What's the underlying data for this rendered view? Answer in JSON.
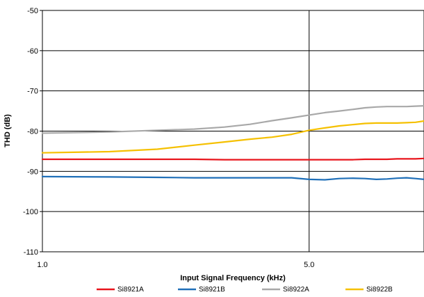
{
  "chart_data": {
    "type": "line",
    "title": "",
    "xlabel": "Input Signal Frequency (kHz)",
    "ylabel": "THD (dB)",
    "x_scale": "log",
    "xlim": [
      1.0,
      10.0
    ],
    "ylim": [
      -110,
      -50
    ],
    "x_ticks": [
      {
        "value": 1.0,
        "label": "1.0"
      },
      {
        "value": 5.0,
        "label": "5.0"
      }
    ],
    "y_ticks": [
      {
        "value": -50,
        "label": "-50"
      },
      {
        "value": -60,
        "label": "-60"
      },
      {
        "value": -70,
        "label": "-70"
      },
      {
        "value": -80,
        "label": "-80"
      },
      {
        "value": -90,
        "label": "-90"
      },
      {
        "value": -100,
        "label": "-100"
      },
      {
        "value": -110,
        "label": "-110"
      }
    ],
    "grid": true,
    "legend_position": "bottom",
    "x": [
      1.0,
      1.5,
      2.0,
      2.5,
      3.0,
      3.5,
      4.0,
      4.5,
      5.0,
      5.5,
      6.0,
      6.5,
      7.0,
      7.5,
      8.0,
      8.5,
      9.0,
      9.5,
      10.0
    ],
    "series": [
      {
        "name": "Si8921A",
        "color": "#e8141b",
        "values": [
          -87.0,
          -87.0,
          -87.0,
          -87.0,
          -87.1,
          -87.1,
          -87.1,
          -87.1,
          -87.1,
          -87.1,
          -87.1,
          -87.1,
          -87.0,
          -87.0,
          -87.0,
          -86.9,
          -86.9,
          -86.9,
          -86.8
        ]
      },
      {
        "name": "Si8921B",
        "color": "#1f6fb8",
        "values": [
          -91.3,
          -91.4,
          -91.5,
          -91.6,
          -91.6,
          -91.6,
          -91.6,
          -91.6,
          -92.0,
          -92.1,
          -91.8,
          -91.7,
          -91.8,
          -92.0,
          -91.9,
          -91.7,
          -91.6,
          -91.8,
          -92.0
        ]
      },
      {
        "name": "Si8922A",
        "color": "#a8a8a8",
        "values": [
          -80.5,
          -80.2,
          -79.8,
          -79.5,
          -79.0,
          -78.3,
          -77.4,
          -76.7,
          -76.0,
          -75.4,
          -75.0,
          -74.6,
          -74.2,
          -74.0,
          -73.9,
          -73.9,
          -73.9,
          -73.8,
          -73.7
        ]
      },
      {
        "name": "Si8922B",
        "color": "#f5c000",
        "values": [
          -85.4,
          -85.1,
          -84.5,
          -83.5,
          -82.7,
          -82.0,
          -81.5,
          -80.8,
          -79.8,
          -79.2,
          -78.7,
          -78.4,
          -78.1,
          -78.0,
          -78.0,
          -78.0,
          -77.9,
          -77.8,
          -77.5
        ]
      }
    ]
  }
}
